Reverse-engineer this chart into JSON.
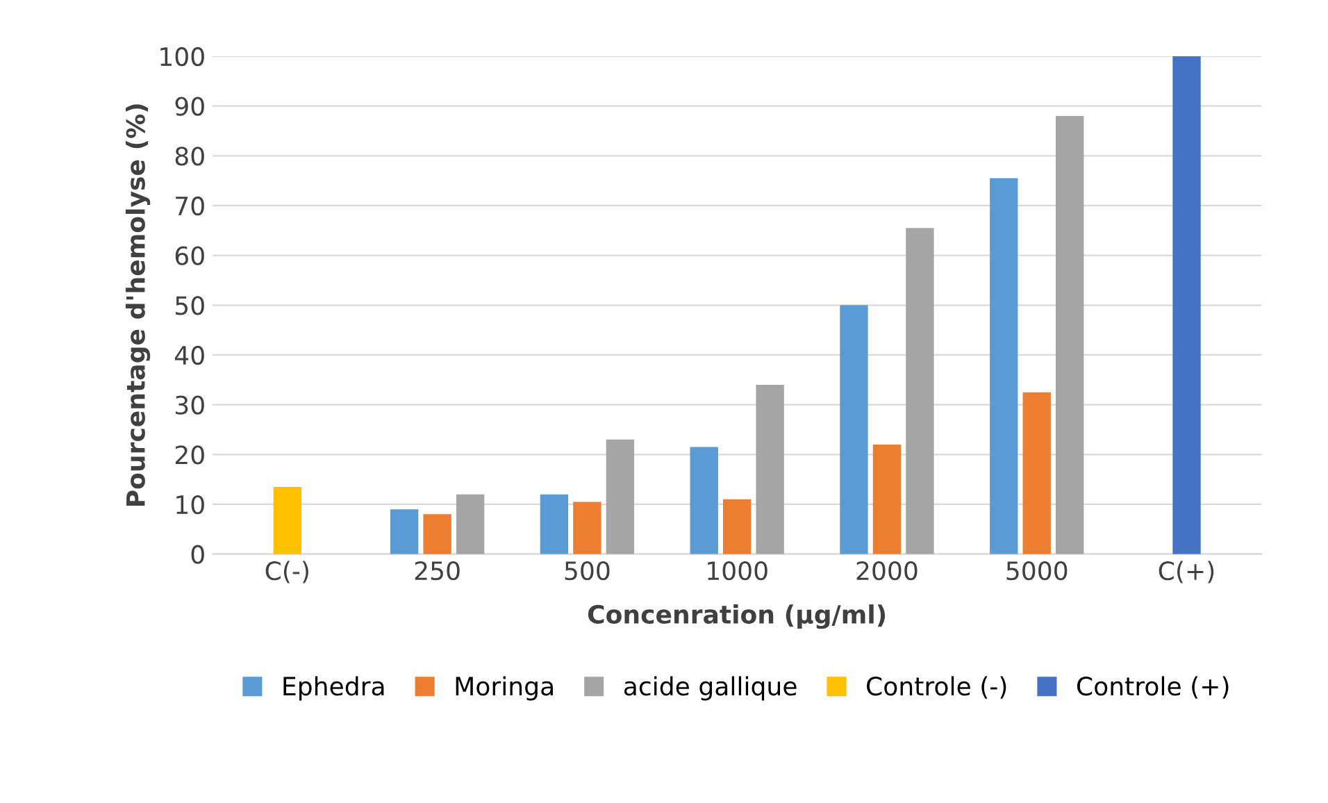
{
  "chart_data": {
    "type": "bar",
    "xlabel": "Concenration (µg/ml)",
    "ylabel": "Pourcentage d'hemolyse (%)",
    "categories": [
      "C(-)",
      "250",
      "500",
      "1000",
      "2000",
      "5000",
      "C(+)"
    ],
    "series": [
      {
        "name": "Ephedra",
        "color": "#5b9bd5",
        "values": [
          null,
          9,
          12,
          21.5,
          50,
          75.5,
          null
        ]
      },
      {
        "name": "Moringa",
        "color": "#ed7d31",
        "values": [
          null,
          8,
          10.5,
          11,
          22,
          32.5,
          null
        ]
      },
      {
        "name": "acide gallique",
        "color": "#a5a5a5",
        "values": [
          null,
          12,
          23,
          34,
          65.5,
          88,
          null
        ]
      },
      {
        "name": "Controle (-)",
        "color": "#ffc000",
        "values": [
          13.5,
          null,
          null,
          null,
          null,
          null,
          null
        ]
      },
      {
        "name": "Controle (+)",
        "color": "#4472c4",
        "values": [
          null,
          null,
          null,
          null,
          null,
          null,
          100
        ]
      }
    ],
    "ylim": [
      0,
      100
    ],
    "yticks": [
      0,
      10,
      20,
      30,
      40,
      50,
      60,
      70,
      80,
      90,
      100
    ],
    "grid": "y",
    "legend": "bottom"
  }
}
